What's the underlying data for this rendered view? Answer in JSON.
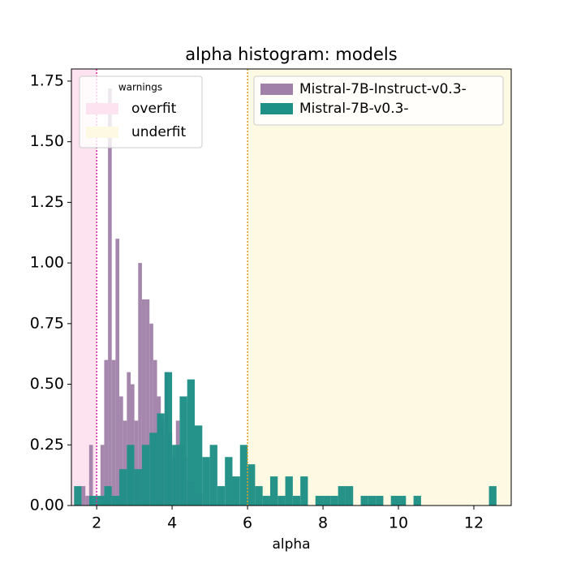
{
  "chart_data": {
    "type": "histogram",
    "title": "alpha histogram:  models",
    "x_label": "alpha",
    "xlim": [
      1.33,
      12.99
    ],
    "ylim": [
      0,
      1.8
    ],
    "xticks": [
      2,
      4,
      6,
      8,
      10,
      12
    ],
    "yticks": [
      {
        "value": 0,
        "label": "0.00"
      },
      {
        "value": 0.25,
        "label": "0.25"
      },
      {
        "value": 0.5,
        "label": "0.50"
      },
      {
        "value": 0.75,
        "label": "0.75"
      },
      {
        "value": 1,
        "label": "1.00"
      },
      {
        "value": 1.25,
        "label": "1.25"
      },
      {
        "value": 1.5,
        "label": "1.50"
      },
      {
        "value": 1.75,
        "label": "1.75"
      }
    ],
    "series": [
      {
        "name": "Mistral-7B-Instruct-v0.3-",
        "color": "#a07fa8",
        "bins": [
          1.6,
          1.7,
          1.8,
          1.9,
          2.0,
          2.1,
          2.2,
          2.3,
          2.4,
          2.5,
          2.6,
          2.7,
          2.8,
          2.9,
          3.0,
          3.1,
          3.2,
          3.3,
          3.4,
          3.5,
          3.6,
          3.7,
          3.8,
          3.9,
          4.0,
          4.1,
          4.2,
          4.3,
          4.4,
          4.5,
          4.6,
          4.7,
          4.8
        ],
        "values": [
          0.08,
          0.04,
          0.25,
          0,
          0,
          0.25,
          0.6,
          1.72,
          0.6,
          1.1,
          0.45,
          0.35,
          0.55,
          0.5,
          0.35,
          1.0,
          0.85,
          0.85,
          0.75,
          0.6,
          0.45,
          0.35,
          0.55,
          0.3,
          0.2,
          0.35,
          0.25,
          0.2,
          0.1,
          0.1,
          0.05,
          0.05
        ]
      },
      {
        "name": "Mistral-7B-v0.3-",
        "color": "#1f9086",
        "bins": [
          1.4,
          1.6,
          1.8,
          2.0,
          2.2,
          2.4,
          2.6,
          2.8,
          3.0,
          3.2,
          3.4,
          3.6,
          3.8,
          4.0,
          4.2,
          4.4,
          4.6,
          4.8,
          5.0,
          5.2,
          5.4,
          5.6,
          5.8,
          6.0,
          6.2,
          6.4,
          6.6,
          6.8,
          7.0,
          7.2,
          7.4,
          7.6,
          7.8,
          8.0,
          8.2,
          8.4,
          8.6,
          8.8,
          9.0,
          9.2,
          9.4,
          9.6,
          9.8,
          10.0,
          10.2,
          10.4,
          10.6,
          10.8,
          11.0,
          11.2,
          11.4,
          11.6,
          11.8,
          12.0,
          12.2,
          12.4,
          12.6
        ],
        "values": [
          0.08,
          0,
          0.04,
          0.04,
          0.08,
          0.04,
          0.15,
          0.25,
          0.15,
          0.25,
          0.3,
          0.38,
          0.55,
          0.25,
          0.45,
          0.52,
          0.33,
          0.2,
          0.25,
          0.08,
          0.2,
          0.12,
          0.25,
          0.17,
          0.08,
          0.04,
          0.12,
          0.04,
          0.12,
          0.04,
          0.12,
          0,
          0.04,
          0.04,
          0.04,
          0.08,
          0.08,
          0,
          0.04,
          0.04,
          0.04,
          0,
          0.04,
          0.04,
          0,
          0.04,
          0,
          0,
          0,
          0,
          0,
          0,
          0,
          0,
          0,
          0.08
        ]
      }
    ],
    "warnings": {
      "title": "warnings",
      "overfit": {
        "label": "overfit",
        "max": 2,
        "color": "#fde3ef",
        "line_color": "#d6249f"
      },
      "underfit": {
        "label": "underfit",
        "min": 6,
        "color": "#fdf9e3",
        "line_color": "#e0a020"
      }
    }
  }
}
